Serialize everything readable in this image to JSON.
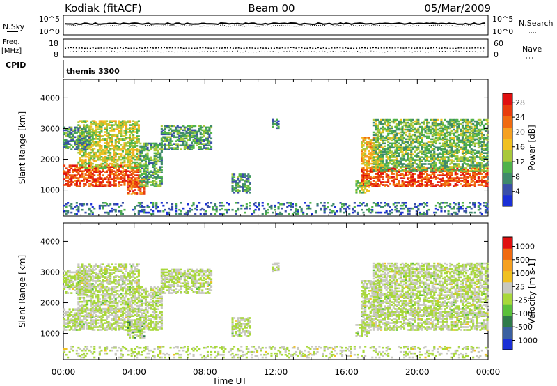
{
  "header": {
    "radar": "Kodiak (fitACF)",
    "beam": "Beam 00",
    "date": "05/Mar/2009"
  },
  "nsky_panel": {
    "left_label": "N.Sky",
    "right_label": "N.Search",
    "left_ticks": [
      "10^5",
      "10^0"
    ],
    "right_ticks": [
      "10^5",
      "10^0"
    ]
  },
  "freq_panel": {
    "left_label_1": "Freq.",
    "left_label_2": "[MHz]",
    "right_label": "Nave",
    "left_ticks": [
      "18",
      "8"
    ],
    "right_ticks": [
      "60",
      "0"
    ]
  },
  "cpid": {
    "label": "CPID",
    "value": "themis 3300"
  },
  "chart_data": [
    {
      "type": "heatmap",
      "title": "",
      "xlabel": "Time UT",
      "ylabel": "Slant Range [km]",
      "xlim": [
        0,
        24
      ],
      "ylim": [
        150,
        4600
      ],
      "x_ticks": [
        "00:00",
        "04:00",
        "08:00",
        "12:00",
        "16:00",
        "20:00",
        "00:00"
      ],
      "y_ticks": [
        "1000",
        "2000",
        "3000",
        "4000"
      ],
      "colorbar": {
        "label": "Power [dB]",
        "ticks": [
          "4",
          "8",
          "12",
          "16",
          "20",
          "24",
          "28"
        ],
        "range": [
          0,
          30
        ],
        "colors": [
          "#1a2fd6",
          "#3a4fa8",
          "#3f8a6a",
          "#4fb24a",
          "#a8c83a",
          "#f0c020",
          "#f5a020",
          "#f06a10",
          "#e83c0c",
          "#e01010"
        ]
      },
      "regions": [
        {
          "t0": 0.0,
          "t1": 4.3,
          "r0": 1100,
          "r1": 1800,
          "level": 25
        },
        {
          "t0": 3.6,
          "t1": 4.5,
          "r0": 850,
          "r1": 1350,
          "level": 23
        },
        {
          "t0": 0.8,
          "t1": 4.3,
          "r0": 1700,
          "r1": 3250,
          "level": 14
        },
        {
          "t0": 0.0,
          "t1": 1.5,
          "r0": 2300,
          "r1": 3050,
          "level": 8
        },
        {
          "t0": 4.3,
          "t1": 5.5,
          "r0": 1100,
          "r1": 2500,
          "level": 10
        },
        {
          "t0": 5.5,
          "t1": 8.3,
          "r0": 2300,
          "r1": 3100,
          "level": 9
        },
        {
          "t0": 9.5,
          "t1": 10.5,
          "r0": 900,
          "r1": 1500,
          "level": 8
        },
        {
          "t0": 11.8,
          "t1": 12.2,
          "r0": 3000,
          "r1": 3300,
          "level": 7
        },
        {
          "t0": 16.8,
          "t1": 24.0,
          "r0": 1100,
          "r1": 1700,
          "level": 25
        },
        {
          "t0": 16.8,
          "t1": 18.0,
          "r0": 1700,
          "r1": 2700,
          "level": 18
        },
        {
          "t0": 17.5,
          "t1": 24.0,
          "r0": 1600,
          "r1": 3300,
          "level": 11
        },
        {
          "t0": 16.5,
          "t1": 17.3,
          "r0": 900,
          "r1": 1300,
          "level": 13
        },
        {
          "t0": 0.0,
          "t1": 24.0,
          "r0": 200,
          "r1": 600,
          "level": 6
        }
      ]
    },
    {
      "type": "heatmap",
      "title": "",
      "xlabel": "Time UT",
      "ylabel": "Slant Range [km]",
      "xlim": [
        0,
        24
      ],
      "ylim": [
        150,
        4600
      ],
      "x_ticks": [
        "00:00",
        "04:00",
        "08:00",
        "12:00",
        "16:00",
        "20:00",
        "00:00"
      ],
      "y_ticks": [
        "1000",
        "2000",
        "3000",
        "4000"
      ],
      "colorbar": {
        "label": "Velocity [m s-1]",
        "ticks": [
          "1000",
          "500",
          "100",
          "25",
          "-25",
          "-100",
          "-500",
          "-1000"
        ],
        "range": [
          -1200,
          1200
        ],
        "colors": [
          "#1a2fd6",
          "#3a5fa0",
          "#2f7a4a",
          "#5ac03a",
          "#a8d83a",
          "#c8c8c0",
          "#f0c020",
          "#f5a020",
          "#f06a10",
          "#e01010"
        ]
      },
      "regions": [
        {
          "t0": 0.0,
          "t1": 4.3,
          "r0": 1100,
          "r1": 1800,
          "level": 0
        },
        {
          "t0": 3.6,
          "t1": 4.5,
          "r0": 850,
          "r1": 1350,
          "level": -350
        },
        {
          "t0": 0.8,
          "t1": 4.3,
          "r0": 1700,
          "r1": 3250,
          "level": 0
        },
        {
          "t0": 0.0,
          "t1": 1.5,
          "r0": 2300,
          "r1": 3050,
          "level": 0
        },
        {
          "t0": 4.3,
          "t1": 5.5,
          "r0": 1100,
          "r1": 2500,
          "level": 0
        },
        {
          "t0": 5.5,
          "t1": 8.3,
          "r0": 2300,
          "r1": 3100,
          "level": 0
        },
        {
          "t0": 9.5,
          "t1": 10.5,
          "r0": 900,
          "r1": 1500,
          "level": 0
        },
        {
          "t0": 11.8,
          "t1": 12.2,
          "r0": 3000,
          "r1": 3300,
          "level": 0
        },
        {
          "t0": 16.8,
          "t1": 24.0,
          "r0": 1100,
          "r1": 1700,
          "level": 0
        },
        {
          "t0": 16.8,
          "t1": 18.0,
          "r0": 1700,
          "r1": 2700,
          "level": 0
        },
        {
          "t0": 17.5,
          "t1": 24.0,
          "r0": 1600,
          "r1": 3300,
          "level": 0
        },
        {
          "t0": 16.5,
          "t1": 17.3,
          "r0": 900,
          "r1": 1300,
          "level": -80
        },
        {
          "t0": 0.0,
          "t1": 24.0,
          "r0": 200,
          "r1": 600,
          "level": 60
        }
      ]
    }
  ]
}
